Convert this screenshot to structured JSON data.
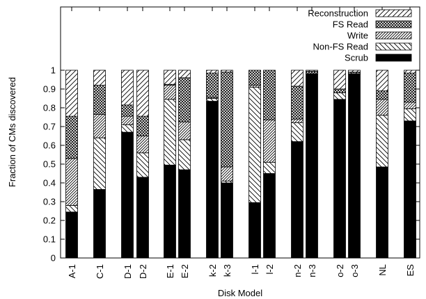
{
  "chart_data": {
    "type": "bar",
    "stacked": true,
    "title": "",
    "xlabel": "Disk Model",
    "ylabel": "Fraction of CMs discovered",
    "ylim": [
      0,
      1
    ],
    "yticks": [
      "0",
      "0.1",
      "0.2",
      "0.3",
      "0.4",
      "0.5",
      "0.6",
      "0.7",
      "0.8",
      "0.9",
      "1"
    ],
    "categories": [
      "A-1",
      "C-1",
      "D-1",
      "D-2",
      "E-1",
      "E-2",
      "k-2",
      "k-3",
      "l-1",
      "l-2",
      "n-2",
      "n-3",
      "o-2",
      "o-3",
      "NL",
      "ES"
    ],
    "legend_position": "top-right",
    "legend_order": [
      "Reconstruction",
      "FS Read",
      "Write",
      "Non-FS Read",
      "Scrub"
    ],
    "series": [
      {
        "name": "Scrub",
        "pattern": "solid",
        "values": [
          0.245,
          0.365,
          0.67,
          0.43,
          0.495,
          0.47,
          0.835,
          0.4,
          0.295,
          0.45,
          0.62,
          0.98,
          0.845,
          0.98,
          0.485,
          0.73
        ]
      },
      {
        "name": "Non-FS Read",
        "pattern": "diag-back",
        "values": [
          0.035,
          0.275,
          0.04,
          0.13,
          0.35,
          0.16,
          0.015,
          0.01,
          0.615,
          0.06,
          0.1,
          0.0,
          0.035,
          0.005,
          0.275,
          0.065
        ]
      },
      {
        "name": "Write",
        "pattern": "diag-dense",
        "values": [
          0.25,
          0.125,
          0.045,
          0.09,
          0.075,
          0.095,
          0.005,
          0.075,
          0.01,
          0.225,
          0.02,
          0.005,
          0.0,
          0.0,
          0.085,
          0.035
        ]
      },
      {
        "name": "FS Read",
        "pattern": "crosshatch",
        "values": [
          0.225,
          0.155,
          0.06,
          0.105,
          0.005,
          0.235,
          0.13,
          0.505,
          0.08,
          0.265,
          0.175,
          0.01,
          0.02,
          0.005,
          0.045,
          0.155
        ]
      },
      {
        "name": "Reconstruction",
        "pattern": "diag-fwd",
        "values": [
          0.245,
          0.08,
          0.185,
          0.245,
          0.075,
          0.04,
          0.015,
          0.01,
          0.0,
          0.0,
          0.085,
          0.005,
          0.1,
          0.01,
          0.11,
          0.015
        ]
      }
    ]
  }
}
